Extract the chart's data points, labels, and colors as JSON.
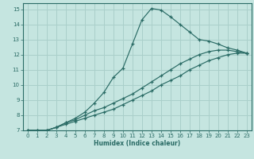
{
  "xlabel": "Humidex (Indice chaleur)",
  "background_color": "#c5e5e0",
  "grid_color": "#aacfca",
  "line_color": "#2a6b65",
  "xlim": [
    -0.5,
    23.5
  ],
  "ylim": [
    7,
    15.4
  ],
  "xticks": [
    0,
    1,
    2,
    3,
    4,
    5,
    6,
    7,
    8,
    9,
    10,
    11,
    12,
    13,
    14,
    15,
    16,
    17,
    18,
    19,
    20,
    21,
    22,
    23
  ],
  "yticks": [
    7,
    8,
    9,
    10,
    11,
    12,
    13,
    14,
    15
  ],
  "series1_x": [
    0,
    1,
    2,
    3,
    4,
    5,
    6,
    7,
    8,
    9,
    10,
    11,
    12,
    13,
    14,
    15,
    16,
    17,
    18,
    19,
    20,
    21,
    22,
    23
  ],
  "series1_y": [
    7.0,
    7.0,
    7.0,
    7.2,
    7.4,
    7.6,
    7.8,
    8.0,
    8.2,
    8.4,
    8.7,
    9.0,
    9.3,
    9.6,
    10.0,
    10.3,
    10.6,
    11.0,
    11.3,
    11.6,
    11.8,
    12.0,
    12.1,
    12.1
  ],
  "series2_x": [
    0,
    1,
    2,
    3,
    4,
    5,
    6,
    7,
    8,
    9,
    10,
    11,
    12,
    13,
    14,
    15,
    16,
    17,
    18,
    19,
    20,
    21,
    22,
    23
  ],
  "series2_y": [
    7.0,
    7.0,
    7.0,
    7.2,
    7.5,
    7.7,
    8.0,
    8.3,
    8.5,
    8.8,
    9.1,
    9.4,
    9.8,
    10.2,
    10.6,
    11.0,
    11.4,
    11.7,
    12.0,
    12.2,
    12.3,
    12.3,
    12.2,
    12.1
  ],
  "series3_x": [
    0,
    1,
    2,
    3,
    4,
    5,
    6,
    7,
    8,
    9,
    10,
    11,
    12,
    13,
    14,
    15,
    16,
    17,
    18,
    19,
    20,
    21,
    22,
    23
  ],
  "series3_y": [
    7.0,
    7.0,
    7.0,
    7.2,
    7.5,
    7.8,
    8.2,
    8.8,
    9.5,
    10.5,
    11.1,
    12.7,
    14.3,
    15.05,
    14.95,
    14.5,
    14.0,
    13.5,
    13.0,
    12.9,
    12.7,
    12.45,
    12.3,
    12.1
  ]
}
